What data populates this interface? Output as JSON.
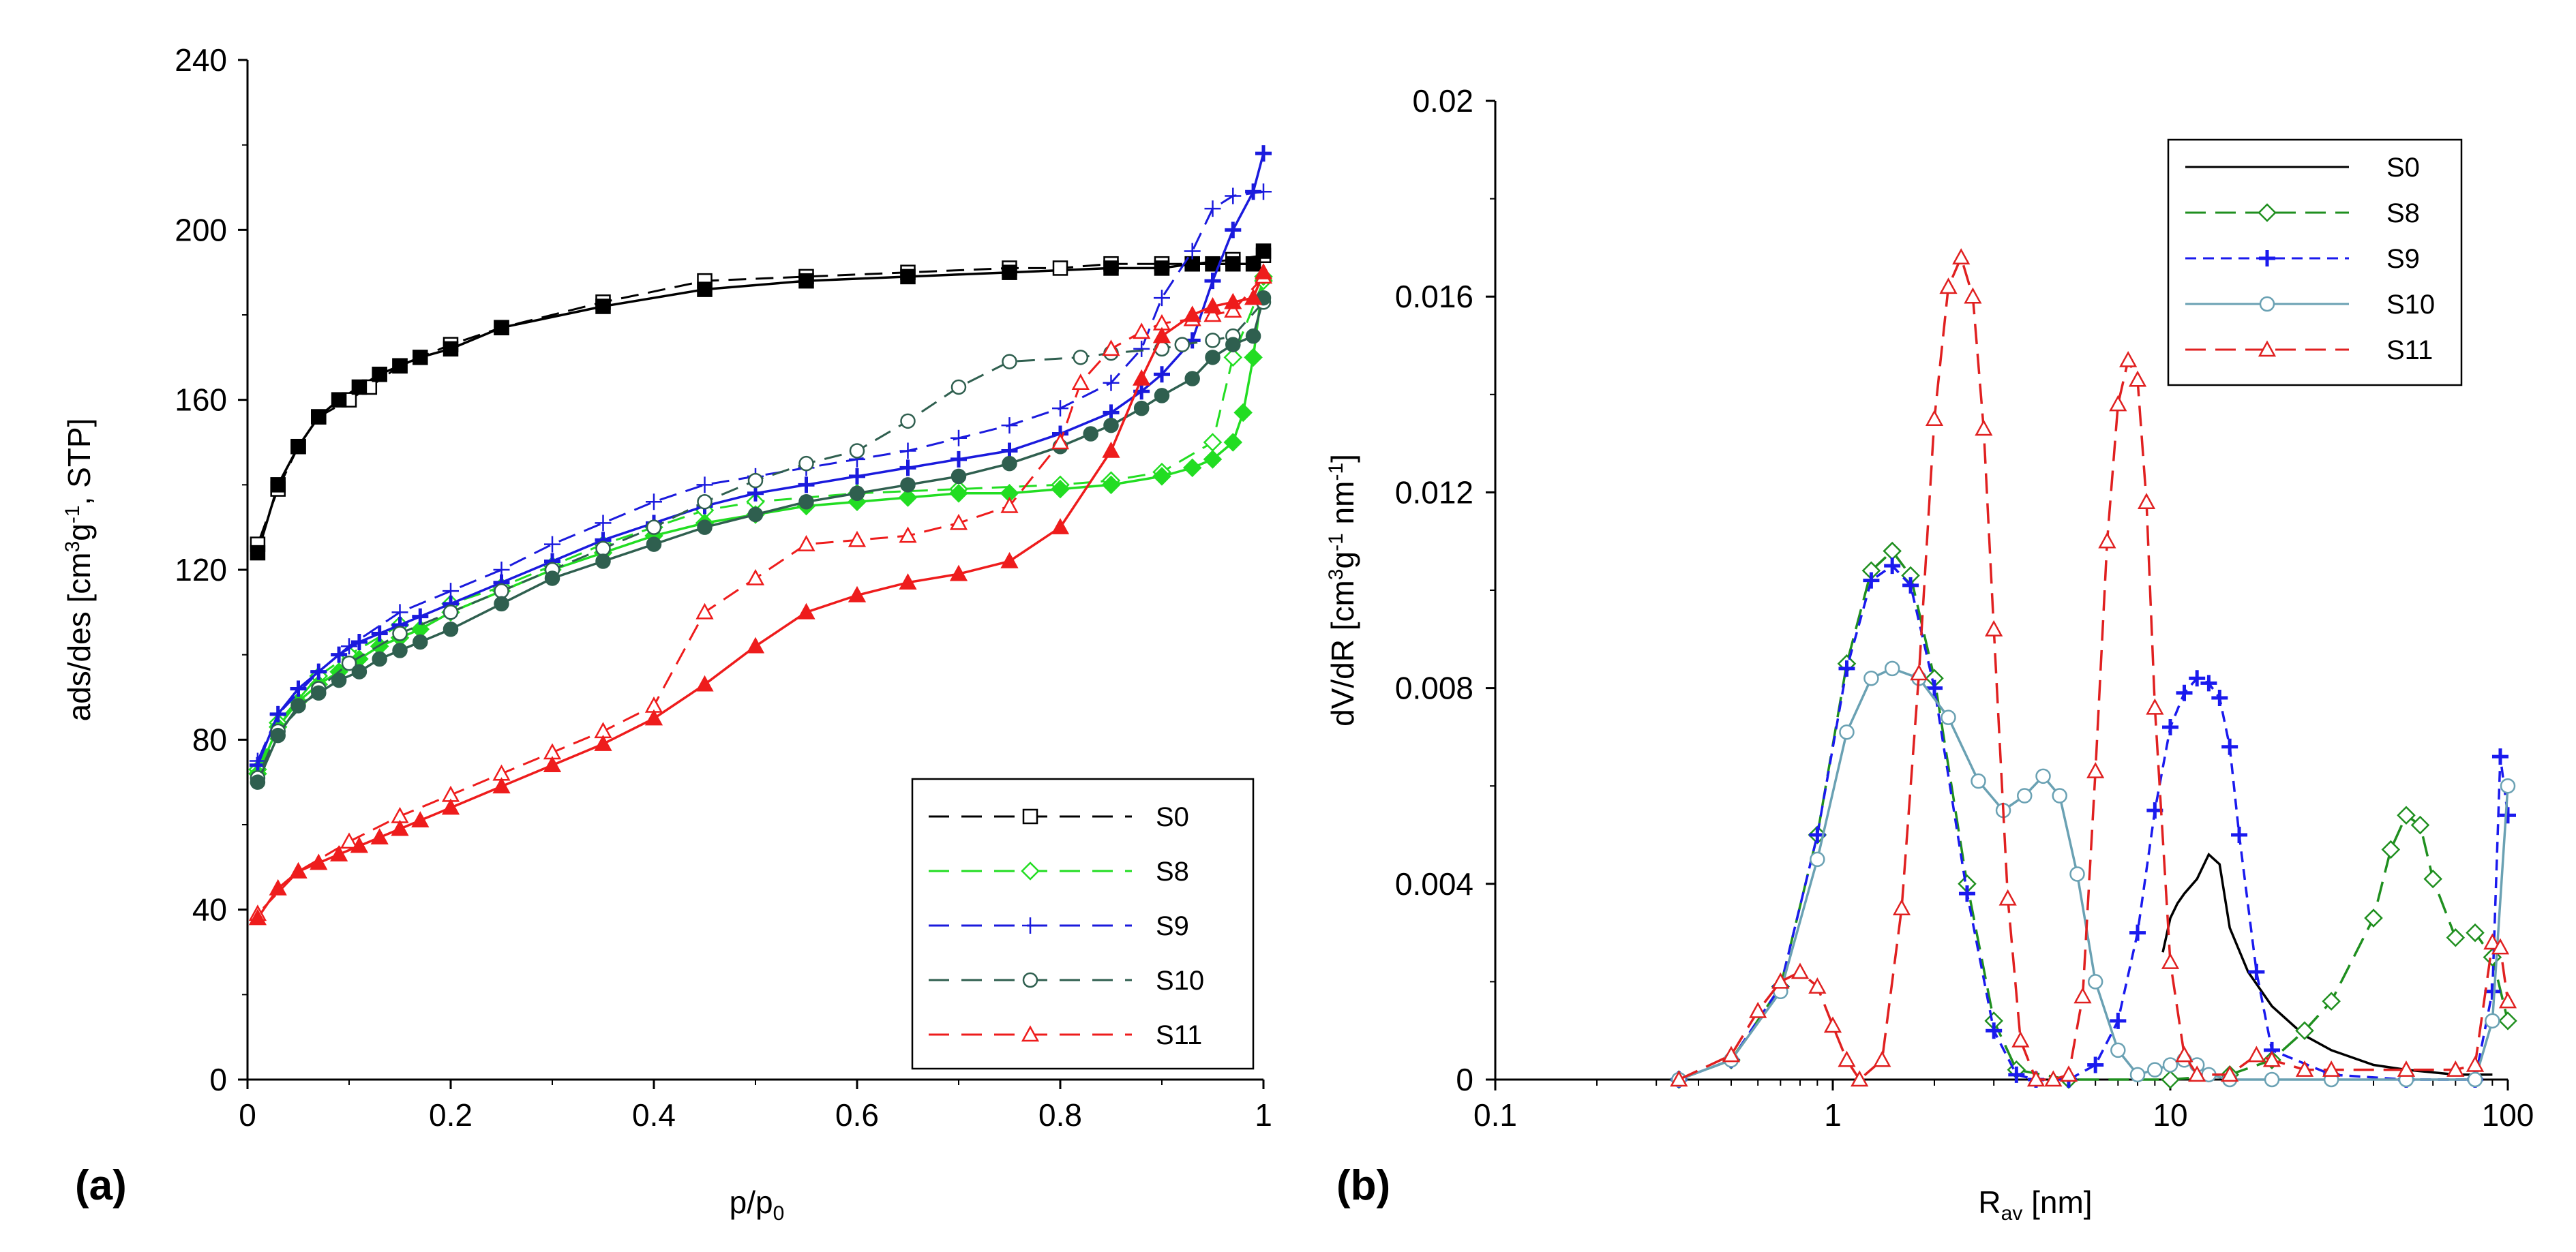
{
  "chart_data": [
    {
      "panel_label": "(a)",
      "type": "line",
      "xlabel": "p/p",
      "xlabel_sub": "0",
      "ylabel_parts": [
        "ads/des  [cm",
        "3",
        "g",
        "-1",
        ", STP]"
      ],
      "xlim": [
        0,
        1
      ],
      "ylim": [
        0,
        240
      ],
      "xticks": [
        "0",
        "0.2",
        "0.4",
        "0.6",
        "0.8",
        "1"
      ],
      "yticks": [
        "0",
        "40",
        "80",
        "120",
        "160",
        "200",
        "240"
      ],
      "legend_position": "bottom-right",
      "series": [
        {
          "name": "S0",
          "color": "#000000",
          "marker": "square",
          "ads_x": [
            0.01,
            0.03,
            0.05,
            0.07,
            0.09,
            0.11,
            0.13,
            0.15,
            0.17,
            0.2,
            0.25,
            0.35,
            0.45,
            0.55,
            0.65,
            0.75,
            0.85,
            0.9,
            0.93,
            0.95,
            0.97,
            0.99,
            1.0
          ],
          "ads_y": [
            124,
            140,
            149,
            156,
            160,
            163,
            166,
            168,
            170,
            172,
            177,
            182,
            186,
            188,
            189,
            190,
            191,
            191,
            192,
            192,
            192,
            192,
            195
          ],
          "des_x": [
            1.0,
            0.97,
            0.93,
            0.9,
            0.85,
            0.8,
            0.75,
            0.65,
            0.55,
            0.45,
            0.35,
            0.25,
            0.2,
            0.15,
            0.12,
            0.1,
            0.07,
            0.05,
            0.03,
            0.01
          ],
          "des_y": [
            194,
            193,
            192,
            192,
            192,
            191,
            191,
            190,
            189,
            188,
            183,
            177,
            173,
            168,
            163,
            160,
            156,
            149,
            139,
            126
          ]
        },
        {
          "name": "S8",
          "color": "#22dd22",
          "marker": "diamond",
          "ads_x": [
            0.01,
            0.03,
            0.05,
            0.07,
            0.09,
            0.11,
            0.13,
            0.15,
            0.17,
            0.2,
            0.25,
            0.3,
            0.35,
            0.4,
            0.45,
            0.5,
            0.55,
            0.6,
            0.65,
            0.7,
            0.75,
            0.8,
            0.85,
            0.9,
            0.93,
            0.95,
            0.97,
            0.98,
            0.99,
            1.0
          ],
          "ads_y": [
            72,
            83,
            89,
            93,
            96,
            99,
            102,
            104,
            106,
            110,
            115,
            120,
            124,
            128,
            131,
            133,
            135,
            136,
            137,
            138,
            138,
            139,
            140,
            142,
            144,
            146,
            150,
            157,
            170,
            189
          ],
          "des_x": [
            1.0,
            0.97,
            0.95,
            0.9,
            0.85,
            0.8,
            0.7,
            0.6,
            0.5,
            0.45,
            0.4,
            0.35,
            0.3,
            0.25,
            0.2,
            0.15,
            0.1,
            0.07,
            0.03,
            0.01
          ],
          "des_y": [
            188,
            170,
            150,
            143,
            141,
            140,
            139,
            138,
            136,
            134,
            130,
            126,
            121,
            116,
            112,
            107,
            100,
            95,
            84,
            73
          ]
        },
        {
          "name": "S9",
          "color": "#1a1add",
          "marker": "plus",
          "ads_x": [
            0.01,
            0.03,
            0.05,
            0.07,
            0.09,
            0.11,
            0.13,
            0.15,
            0.17,
            0.2,
            0.25,
            0.3,
            0.35,
            0.4,
            0.45,
            0.5,
            0.55,
            0.6,
            0.65,
            0.7,
            0.75,
            0.8,
            0.85,
            0.88,
            0.9,
            0.93,
            0.95,
            0.97,
            0.99,
            1.0
          ],
          "ads_y": [
            74,
            86,
            92,
            96,
            100,
            103,
            105,
            107,
            109,
            112,
            117,
            122,
            127,
            131,
            135,
            138,
            140,
            142,
            144,
            146,
            148,
            152,
            157,
            162,
            166,
            174,
            188,
            200,
            209,
            218
          ],
          "des_x": [
            1.0,
            0.97,
            0.95,
            0.93,
            0.9,
            0.88,
            0.85,
            0.8,
            0.75,
            0.7,
            0.65,
            0.6,
            0.55,
            0.5,
            0.45,
            0.4,
            0.35,
            0.3,
            0.25,
            0.2,
            0.15,
            0.1,
            0.07,
            0.03,
            0.01
          ],
          "des_y": [
            209,
            208,
            205,
            195,
            184,
            172,
            164,
            158,
            154,
            151,
            148,
            146,
            144,
            142,
            140,
            136,
            131,
            126,
            120,
            115,
            110,
            102,
            96,
            86,
            75
          ]
        },
        {
          "name": "S10",
          "color": "#2f5f4f",
          "marker": "circle",
          "ads_x": [
            0.01,
            0.03,
            0.05,
            0.07,
            0.09,
            0.11,
            0.13,
            0.15,
            0.17,
            0.2,
            0.25,
            0.3,
            0.35,
            0.4,
            0.45,
            0.5,
            0.55,
            0.6,
            0.65,
            0.7,
            0.75,
            0.8,
            0.83,
            0.85,
            0.88,
            0.9,
            0.93,
            0.95,
            0.97,
            0.99,
            1.0
          ],
          "ads_y": [
            70,
            81,
            88,
            91,
            94,
            96,
            99,
            101,
            103,
            106,
            112,
            118,
            122,
            126,
            130,
            133,
            136,
            138,
            140,
            142,
            145,
            149,
            152,
            154,
            158,
            161,
            165,
            170,
            173,
            175,
            184
          ],
          "des_x": [
            1.0,
            0.97,
            0.95,
            0.92,
            0.9,
            0.85,
            0.82,
            0.75,
            0.7,
            0.65,
            0.6,
            0.55,
            0.5,
            0.45,
            0.4,
            0.35,
            0.3,
            0.25,
            0.2,
            0.15,
            0.1,
            0.07,
            0.03,
            0.01
          ],
          "des_y": [
            183,
            175,
            174,
            173,
            172,
            171,
            170,
            169,
            163,
            155,
            148,
            145,
            141,
            136,
            130,
            125,
            120,
            115,
            110,
            105,
            98,
            92,
            82,
            71
          ]
        },
        {
          "name": "S11",
          "color": "#ee1c1c",
          "marker": "triangle",
          "ads_x": [
            0.01,
            0.03,
            0.05,
            0.07,
            0.09,
            0.11,
            0.13,
            0.15,
            0.17,
            0.2,
            0.25,
            0.3,
            0.35,
            0.4,
            0.45,
            0.5,
            0.55,
            0.6,
            0.65,
            0.7,
            0.75,
            0.8,
            0.85,
            0.88,
            0.9,
            0.93,
            0.95,
            0.97,
            0.99,
            1.0
          ],
          "ads_y": [
            38,
            45,
            49,
            51,
            53,
            55,
            57,
            59,
            61,
            64,
            69,
            74,
            79,
            85,
            93,
            102,
            110,
            114,
            117,
            119,
            122,
            130,
            148,
            165,
            175,
            180,
            182,
            183,
            184,
            190
          ],
          "des_x": [
            1.0,
            0.97,
            0.95,
            0.93,
            0.9,
            0.88,
            0.85,
            0.82,
            0.8,
            0.75,
            0.7,
            0.65,
            0.6,
            0.55,
            0.5,
            0.45,
            0.4,
            0.35,
            0.3,
            0.25,
            0.2,
            0.15,
            0.1,
            0.05,
            0.01
          ],
          "des_y": [
            189,
            181,
            180,
            179,
            178,
            176,
            172,
            164,
            150,
            135,
            131,
            128,
            127,
            126,
            118,
            110,
            88,
            82,
            77,
            72,
            67,
            62,
            56,
            49,
            39
          ]
        }
      ]
    },
    {
      "panel_label": "(b)",
      "type": "line",
      "xscale": "log",
      "xlabel": "R",
      "xlabel_sub": "av",
      "xlabel_after": " [nm]",
      "ylabel_parts": [
        "dV/dR  [cm",
        "3",
        "g",
        "-1",
        " nm",
        "-1",
        "]"
      ],
      "xlim": [
        0.1,
        100
      ],
      "ylim": [
        0,
        0.02
      ],
      "xticks": [
        "0.1",
        "1",
        "10",
        "100"
      ],
      "yticks": [
        "0",
        "0.004",
        "0.008",
        "0.012",
        "0.016",
        "0.02"
      ],
      "legend_position": "top-right",
      "series": [
        {
          "name": "S0",
          "color": "#000000",
          "marker": "none",
          "dash": "solid",
          "x": [
            9.5,
            10,
            10.5,
            11,
            12,
            13,
            14,
            15,
            17,
            20,
            25,
            30,
            40,
            50,
            70,
            90
          ],
          "y": [
            0.0026,
            0.0033,
            0.0036,
            0.0038,
            0.0041,
            0.0046,
            0.0044,
            0.0031,
            0.0022,
            0.0015,
            0.0009,
            0.0006,
            0.0003,
            0.0002,
            0.0001,
            0.0001
          ]
        },
        {
          "name": "S8",
          "color": "#1f8f1f",
          "marker": "diamond",
          "dash": "longdash",
          "x": [
            0.35,
            0.5,
            0.7,
            0.9,
            1.1,
            1.3,
            1.5,
            1.7,
            2,
            2.5,
            3,
            3.5,
            5,
            10,
            15,
            20,
            25,
            30,
            40,
            45,
            50,
            55,
            60,
            70,
            80,
            90,
            100
          ],
          "y": [
            0,
            0.0004,
            0.0019,
            0.005,
            0.0085,
            0.0104,
            0.0108,
            0.0103,
            0.0082,
            0.004,
            0.0012,
            0.0002,
            0,
            0,
            0.0001,
            0.0004,
            0.001,
            0.0016,
            0.0033,
            0.0047,
            0.0054,
            0.0052,
            0.0041,
            0.0029,
            0.003,
            0.0025,
            0.0012
          ]
        },
        {
          "name": "S9",
          "color": "#1a1aee",
          "marker": "plus",
          "dash": "dash",
          "x": [
            0.35,
            0.5,
            0.7,
            0.9,
            1.1,
            1.3,
            1.5,
            1.7,
            2,
            2.5,
            3,
            3.5,
            4,
            5,
            6,
            7,
            8,
            9,
            10,
            11,
            12,
            13,
            14,
            15,
            16,
            18,
            20,
            30,
            50,
            80,
            90,
            95,
            100
          ],
          "y": [
            0,
            0.0004,
            0.0019,
            0.005,
            0.0084,
            0.0102,
            0.0105,
            0.0101,
            0.008,
            0.0038,
            0.001,
            0.0001,
            0,
            0,
            0.0003,
            0.0012,
            0.003,
            0.0055,
            0.0072,
            0.0079,
            0.0082,
            0.0081,
            0.0078,
            0.0068,
            0.005,
            0.0022,
            0.0006,
            0.0001,
            0,
            0,
            0.0018,
            0.0066,
            0.0054
          ]
        },
        {
          "name": "S10",
          "color": "#6aa1b3",
          "marker": "circle",
          "dash": "solid",
          "x": [
            0.35,
            0.5,
            0.7,
            0.9,
            1.1,
            1.3,
            1.5,
            1.8,
            2.2,
            2.7,
            3.2,
            3.7,
            4.2,
            4.7,
            5.3,
            6,
            7,
            8,
            9,
            10,
            11,
            12,
            13,
            15,
            20,
            30,
            50,
            80,
            90,
            100
          ],
          "y": [
            0,
            0.0004,
            0.0018,
            0.0045,
            0.0071,
            0.0082,
            0.0084,
            0.0082,
            0.0074,
            0.0061,
            0.0055,
            0.0058,
            0.0062,
            0.0058,
            0.0042,
            0.002,
            0.0006,
            0.0001,
            0.0002,
            0.0003,
            0.0004,
            0.0003,
            0.0001,
            0,
            0,
            0,
            0,
            0,
            0.0012,
            0.006
          ]
        },
        {
          "name": "S11",
          "color": "#e02020",
          "marker": "triangle",
          "dash": "longdash",
          "x": [
            0.35,
            0.5,
            0.6,
            0.7,
            0.8,
            0.9,
            1,
            1.1,
            1.2,
            1.4,
            1.6,
            1.8,
            2,
            2.2,
            2.4,
            2.6,
            2.8,
            3,
            3.3,
            3.6,
            4,
            4.5,
            5,
            5.5,
            6,
            6.5,
            7,
            7.5,
            8,
            8.5,
            9,
            10,
            11,
            12,
            15,
            18,
            20,
            25,
            30,
            50,
            70,
            80,
            90,
            95,
            100
          ],
          "y": [
            0,
            0.0005,
            0.0014,
            0.002,
            0.0022,
            0.0019,
            0.0011,
            0.0004,
            0,
            0.0004,
            0.0035,
            0.0083,
            0.0135,
            0.0162,
            0.0168,
            0.016,
            0.0133,
            0.0092,
            0.0037,
            0.0008,
            0,
            0,
            0.0001,
            0.0017,
            0.0063,
            0.011,
            0.0138,
            0.0147,
            0.0143,
            0.0118,
            0.0076,
            0.0024,
            0.0005,
            0.0001,
            0.0001,
            0.0005,
            0.0004,
            0.0002,
            0.0002,
            0.0002,
            0.0002,
            0.0003,
            0.0028,
            0.0027,
            0.0016
          ]
        }
      ]
    }
  ]
}
